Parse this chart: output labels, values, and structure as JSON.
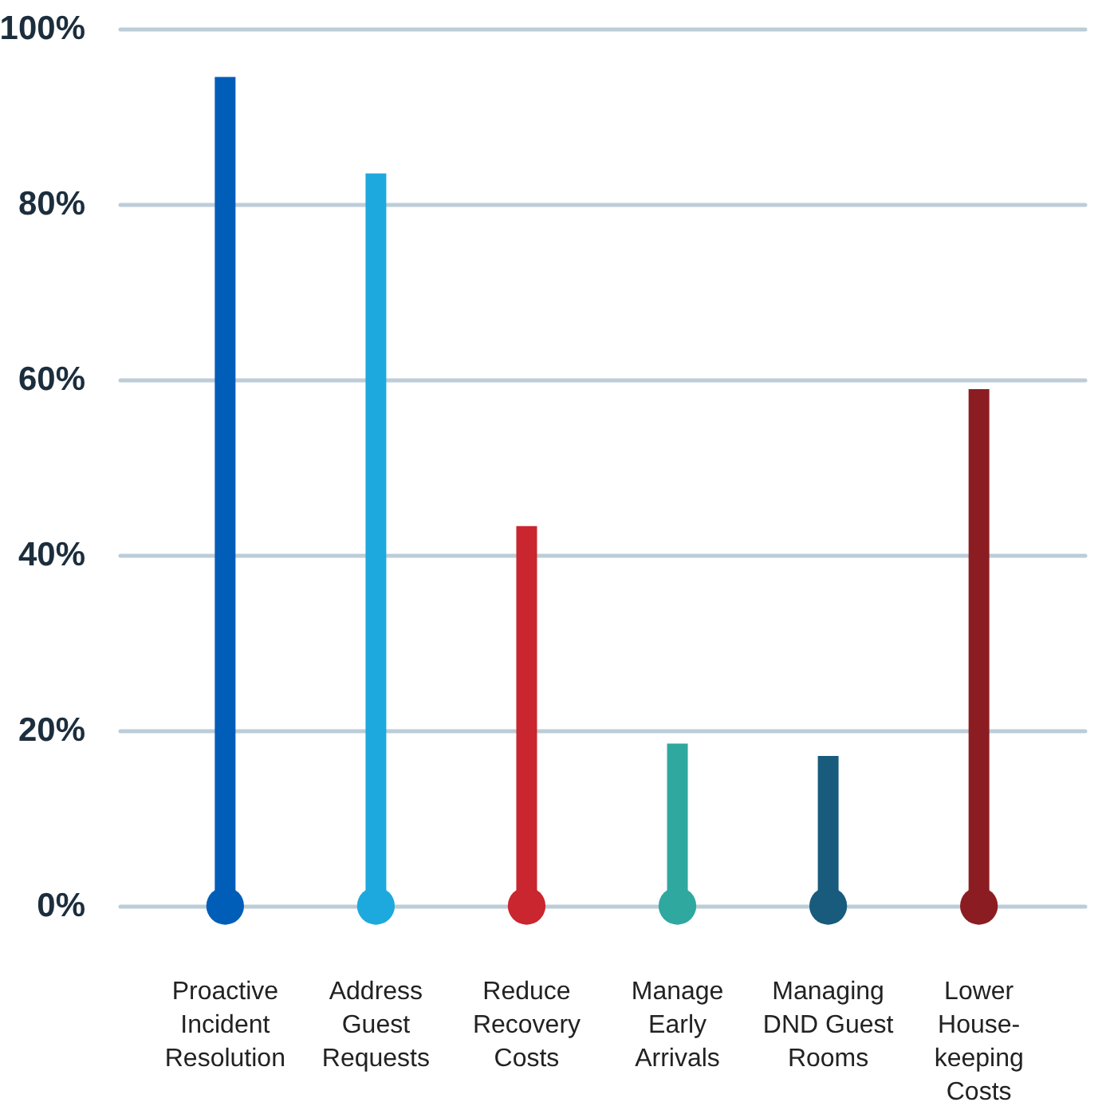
{
  "chart_data": {
    "type": "bar",
    "categories": [
      "Proactive Incident Resolution",
      "Address Guest Requests",
      "Reduce Recovery Costs",
      "Manage Early Arrivals",
      "Managing DND Guest Rooms",
      "Lower House-keeping Costs"
    ],
    "values": [
      94.5,
      83.5,
      43.3,
      18.5,
      17.1,
      58.9
    ],
    "colors": [
      "#005eb8",
      "#1da9de",
      "#c9262f",
      "#2fa8a0",
      "#195b7c",
      "#8b1d22"
    ],
    "ylim": [
      0,
      100
    ],
    "yticks": [
      {
        "value": 0,
        "label": "0%"
      },
      {
        "value": 20,
        "label": "20%"
      },
      {
        "value": 40,
        "label": "40%"
      },
      {
        "value": 60,
        "label": "60%"
      },
      {
        "value": 80,
        "label": "80%"
      },
      {
        "value": 100,
        "label": "100%"
      }
    ],
    "grid": "y"
  }
}
